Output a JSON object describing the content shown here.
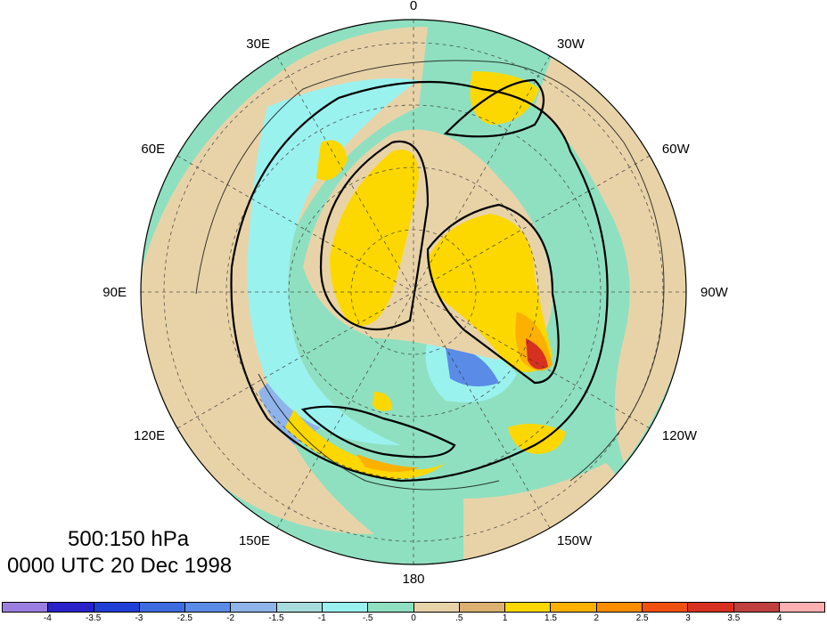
{
  "caption": {
    "levels": "500:150 hPa",
    "time": "0000 UTC 20 Dec 1998"
  },
  "longitude_labels": [
    {
      "text": "0",
      "angle": 0
    },
    {
      "text": "30W",
      "angle": 30
    },
    {
      "text": "60W",
      "angle": 60
    },
    {
      "text": "90W",
      "angle": 90
    },
    {
      "text": "120W",
      "angle": 120
    },
    {
      "text": "150W",
      "angle": 150
    },
    {
      "text": "180",
      "angle": 180
    },
    {
      "text": "150E",
      "angle": 210
    },
    {
      "text": "120E",
      "angle": 240
    },
    {
      "text": "90E",
      "angle": 270
    },
    {
      "text": "60E",
      "angle": 300
    },
    {
      "text": "30E",
      "angle": 330
    }
  ],
  "colorbar": {
    "colors": [
      "#9b7fe0",
      "#2a22c8",
      "#1f3fd6",
      "#3c6ce0",
      "#5a8be6",
      "#8fb4ea",
      "#a8dcdc",
      "#9af2ef",
      "#8fe0c0",
      "#e8d3a8",
      "#dcb070",
      "#fcd800",
      "#fcb000",
      "#fc8c00",
      "#f05010",
      "#d83020",
      "#c04040",
      "#ffb0b0"
    ],
    "labels": [
      "-4",
      "-3.5",
      "-3",
      "-2.5",
      "-2",
      "-1.5",
      "-1",
      "-.5",
      "0",
      ".5",
      "1",
      "1.5",
      "2",
      "2.5",
      "3",
      "3.5",
      "4"
    ]
  },
  "colors": {
    "neutral_tan": "#e8d3a8",
    "neutral_green": "#8fe0c0",
    "positive": "#fcd800",
    "negative": "#9af2ef"
  }
}
